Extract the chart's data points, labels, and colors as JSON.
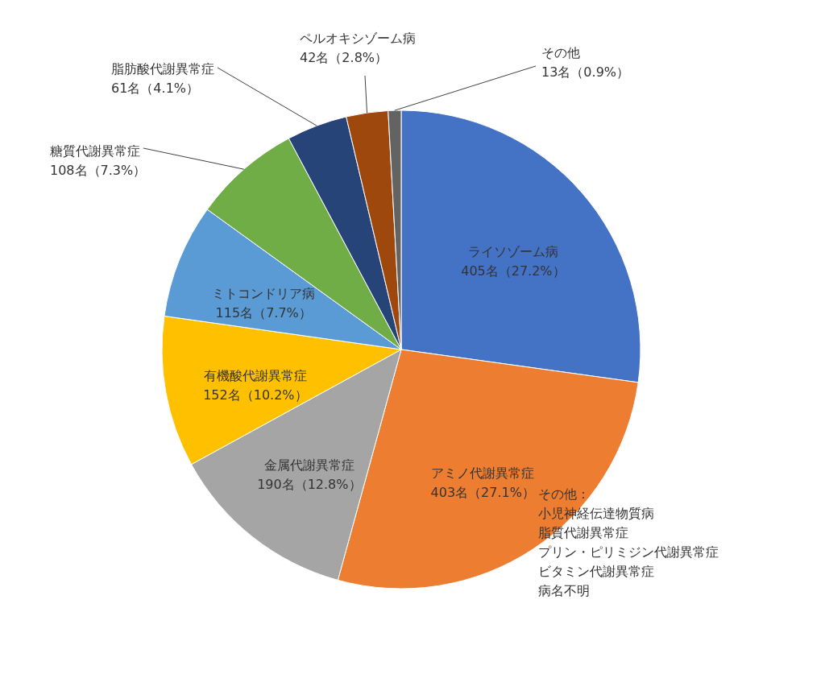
{
  "chart_data": {
    "type": "pie",
    "categories": [
      "ライソゾーム病",
      "アミノ代謝異常症",
      "金属代謝異常症",
      "有機酸代謝異常症",
      "ミトコンドリア病",
      "糖質代謝異常症",
      "脂肪酸代謝異常症",
      "ペルオキシゾーム病",
      "その他"
    ],
    "values": [
      405,
      403,
      190,
      152,
      115,
      108,
      61,
      42,
      13
    ],
    "value_labels": [
      "405名（27.2%）",
      "403名（27.1%）",
      "190名（12.8%）",
      "152名（10.2%）",
      "115名（7.7%）",
      "108名（7.3%）",
      "61名（4.1%）",
      "42名（2.8%）",
      "13名（0.9%）"
    ],
    "colors": [
      "#4472c4",
      "#ed7d31",
      "#a5a5a5",
      "#ffc000",
      "#5b9bd5",
      "#70ad47",
      "#264478",
      "#9e480e",
      "#636363"
    ],
    "annotations": [
      "その他：",
      "小児神経伝達物質病",
      "脂質代謝異常症",
      "プリン・ピリミジン代謝異常症",
      "ビタミン代謝異常症",
      "病名不明"
    ]
  }
}
